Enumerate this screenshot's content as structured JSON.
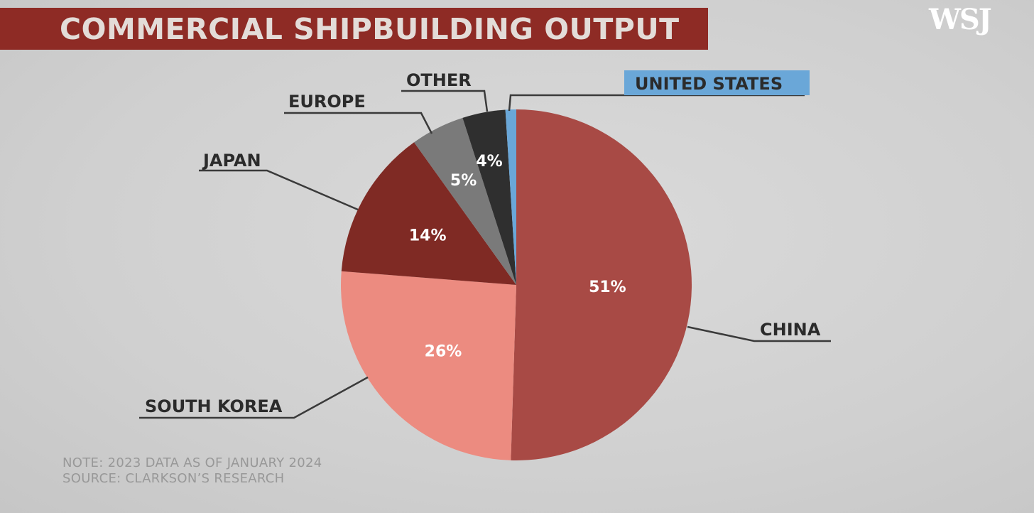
{
  "header": {
    "title": "COMMERCIAL SHIPBUILDING OUTPUT",
    "brand": "WSJ"
  },
  "footer": {
    "note": "NOTE: 2023 DATA AS OF JANUARY 2024",
    "source": "SOURCE: CLARKSON’S RESEARCH"
  },
  "colors": {
    "background": "#d3d3d3",
    "title_bar": "#8e2b25",
    "leader_line": "#3a3a3a",
    "label_text": "#2b2b2b",
    "highlight": "#6aa7d8"
  },
  "chart_data": {
    "type": "pie",
    "title": "COMMERCIAL SHIPBUILDING OUTPUT",
    "start_angle_deg": 0,
    "direction": "clockwise",
    "legend": "none",
    "slices": [
      {
        "label": "CHINA",
        "value": 51,
        "value_label": "51%",
        "color": "#a84a45"
      },
      {
        "label": "SOUTH KOREA",
        "value": 26,
        "value_label": "26%",
        "color": "#ec8b80"
      },
      {
        "label": "JAPAN",
        "value": 14,
        "value_label": "14%",
        "color": "#7f2a24"
      },
      {
        "label": "EUROPE",
        "value": 5,
        "value_label": "5%",
        "color": "#7a7a7a"
      },
      {
        "label": "OTHER",
        "value": 4,
        "value_label": "4%",
        "color": "#2f2f2f"
      },
      {
        "label": "UNITED STATES",
        "value": 1,
        "value_label": "",
        "color": "#6aa7d8",
        "label_highlight": true
      }
    ]
  }
}
